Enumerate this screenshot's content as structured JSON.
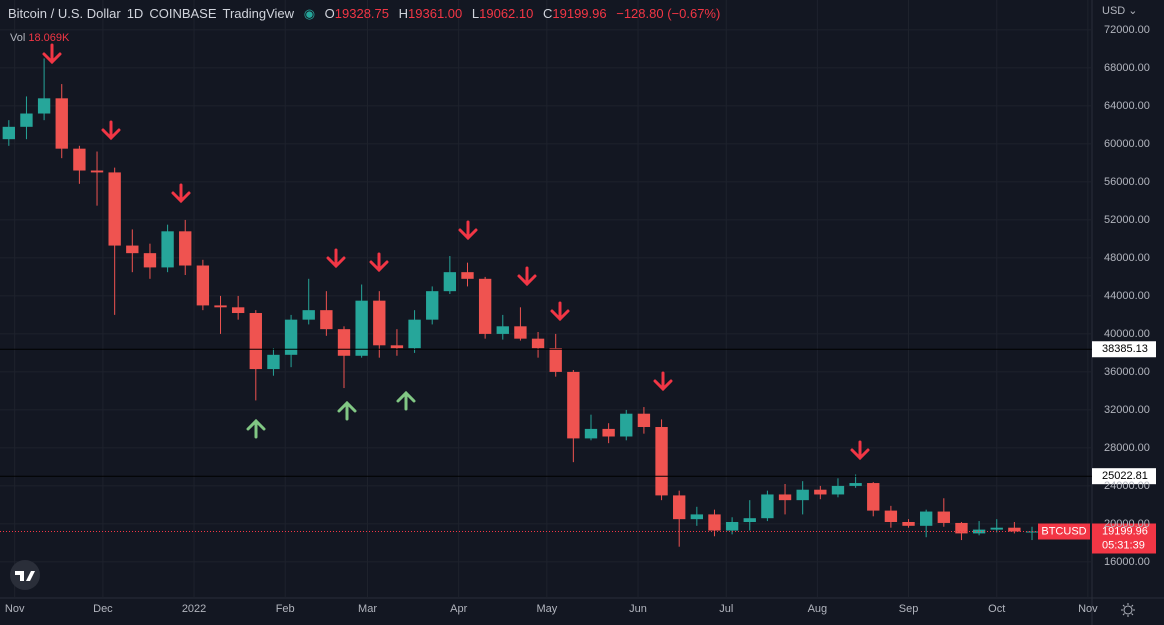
{
  "header": {
    "symbol_name": "Bitcoin / U.S. Dollar",
    "interval": "1D",
    "exchange": "COINBASE",
    "platform": "TradingView",
    "o_label": "O",
    "open": "19328.75",
    "h_label": "H",
    "high": "19361.00",
    "l_label": "L",
    "low": "19062.10",
    "c_label": "C",
    "close": "19199.96",
    "change": "−128.80 (−0.67%)",
    "vol_label": "Vol",
    "volume": "18.069K",
    "currency": "USD"
  },
  "chart_data": {
    "type": "candlestick",
    "up_color": "#26a69a",
    "down_color": "#ef5350",
    "x": [
      3,
      9,
      15,
      21,
      27,
      33,
      39,
      45,
      51,
      57,
      63,
      69,
      75,
      81,
      87,
      93,
      99,
      105,
      111,
      117,
      123,
      129,
      135,
      141,
      147,
      153,
      159,
      165,
      171,
      177,
      183,
      189,
      195,
      201,
      207,
      213,
      219,
      225,
      231,
      237,
      243,
      249,
      255,
      261,
      267,
      273,
      279,
      285,
      291,
      297,
      303,
      309,
      315,
      321,
      327,
      333,
      339,
      345,
      351
    ],
    "open": [
      60500,
      61800,
      63200,
      64800,
      59500,
      57200,
      57000,
      49300,
      48500,
      47000,
      50800,
      47200,
      43000,
      42800,
      42200,
      36300,
      37800,
      41500,
      42500,
      40500,
      37700,
      43500,
      38800,
      38500,
      41500,
      44500,
      46500,
      45800,
      40000,
      40800,
      39500,
      38500,
      36000,
      29000,
      30000,
      29200,
      31600,
      30200,
      23000,
      20500,
      21000,
      19300,
      20200,
      20600,
      23100,
      22500,
      23600,
      23100,
      24000,
      24300,
      21400,
      20200,
      19800,
      21300,
      20100,
      19000,
      19400,
      19600,
      19200
    ],
    "high": [
      62500,
      65000,
      69000,
      66300,
      59800,
      59200,
      57500,
      51000,
      49500,
      51500,
      52000,
      47800,
      44000,
      44000,
      42500,
      38500,
      42000,
      45800,
      44500,
      40800,
      45200,
      44500,
      40500,
      42500,
      45000,
      48200,
      47500,
      46000,
      42000,
      42800,
      40200,
      40000,
      36200,
      31500,
      30600,
      32000,
      32300,
      31000,
      23500,
      21800,
      21500,
      20700,
      22500,
      23500,
      24200,
      24500,
      24000,
      24800,
      25200,
      24400,
      21900,
      20500,
      21500,
      22700,
      20200,
      20300,
      20500,
      20200,
      19700
    ],
    "low": [
      59800,
      60500,
      62500,
      58500,
      55800,
      53500,
      42000,
      46500,
      45800,
      46500,
      46200,
      42500,
      40000,
      41500,
      33000,
      35600,
      36500,
      41000,
      39800,
      34300,
      37500,
      37500,
      37700,
      38000,
      41000,
      44200,
      45000,
      39500,
      39400,
      39300,
      37500,
      35500,
      26500,
      28800,
      28500,
      28800,
      29500,
      22500,
      17600,
      19800,
      18700,
      18900,
      19300,
      20300,
      21000,
      21000,
      22600,
      22800,
      23800,
      20800,
      19600,
      19600,
      18600,
      19700,
      18300,
      18800,
      19100,
      19000,
      18300
    ],
    "close": [
      61800,
      63200,
      64800,
      59500,
      57200,
      57000,
      49300,
      48500,
      47000,
      50800,
      47200,
      43000,
      42800,
      42200,
      36300,
      37800,
      41500,
      42500,
      40500,
      37700,
      43500,
      38800,
      38500,
      41500,
      44500,
      46500,
      45800,
      40000,
      40800,
      39500,
      38500,
      36000,
      29000,
      30000,
      29200,
      31600,
      30200,
      23000,
      20500,
      21000,
      19300,
      20200,
      20600,
      23100,
      22500,
      23600,
      23100,
      24000,
      24300,
      21400,
      20200,
      19800,
      21300,
      20100,
      19000,
      19400,
      19600,
      19200,
      19200
    ],
    "xlim": [
      0,
      371.4
    ],
    "xticks": [
      {
        "value": 5,
        "label": "Nov"
      },
      {
        "value": 35,
        "label": "Dec"
      },
      {
        "value": 66,
        "label": "2022"
      },
      {
        "value": 97,
        "label": "Feb"
      },
      {
        "value": 125,
        "label": "Mar"
      },
      {
        "value": 156,
        "label": "Apr"
      },
      {
        "value": 186,
        "label": "May"
      },
      {
        "value": 217,
        "label": "Jun"
      },
      {
        "value": 247,
        "label": "Jul"
      },
      {
        "value": 278,
        "label": "Aug"
      },
      {
        "value": 309,
        "label": "Sep"
      },
      {
        "value": 339,
        "label": "Oct"
      },
      {
        "value": 370,
        "label": "Nov"
      }
    ],
    "ylim": [
      12200,
      75150
    ],
    "yticks": [
      {
        "value": 16000,
        "label": "16000.00"
      },
      {
        "value": 20000,
        "label": "20000.00"
      },
      {
        "value": 24000,
        "label": "24000.00"
      },
      {
        "value": 28000,
        "label": "28000.00"
      },
      {
        "value": 32000,
        "label": "32000.00"
      },
      {
        "value": 36000,
        "label": "36000.00"
      },
      {
        "value": 40000,
        "label": "40000.00"
      },
      {
        "value": 44000,
        "label": "44000.00"
      },
      {
        "value": 48000,
        "label": "48000.00"
      },
      {
        "value": 52000,
        "label": "52000.00"
      },
      {
        "value": 56000,
        "label": "56000.00"
      },
      {
        "value": 60000,
        "label": "60000.00"
      },
      {
        "value": 64000,
        "label": "64000.00"
      },
      {
        "value": 68000,
        "label": "68000.00"
      },
      {
        "value": 72000,
        "label": "72000.00"
      }
    ],
    "grid": true,
    "horizontal_lines": [
      38385.13,
      25022.81
    ],
    "last_price": {
      "symbol": "BTCUSD",
      "value": 19199.96,
      "countdown": "05:31:39",
      "color": "#f23645"
    }
  }
}
